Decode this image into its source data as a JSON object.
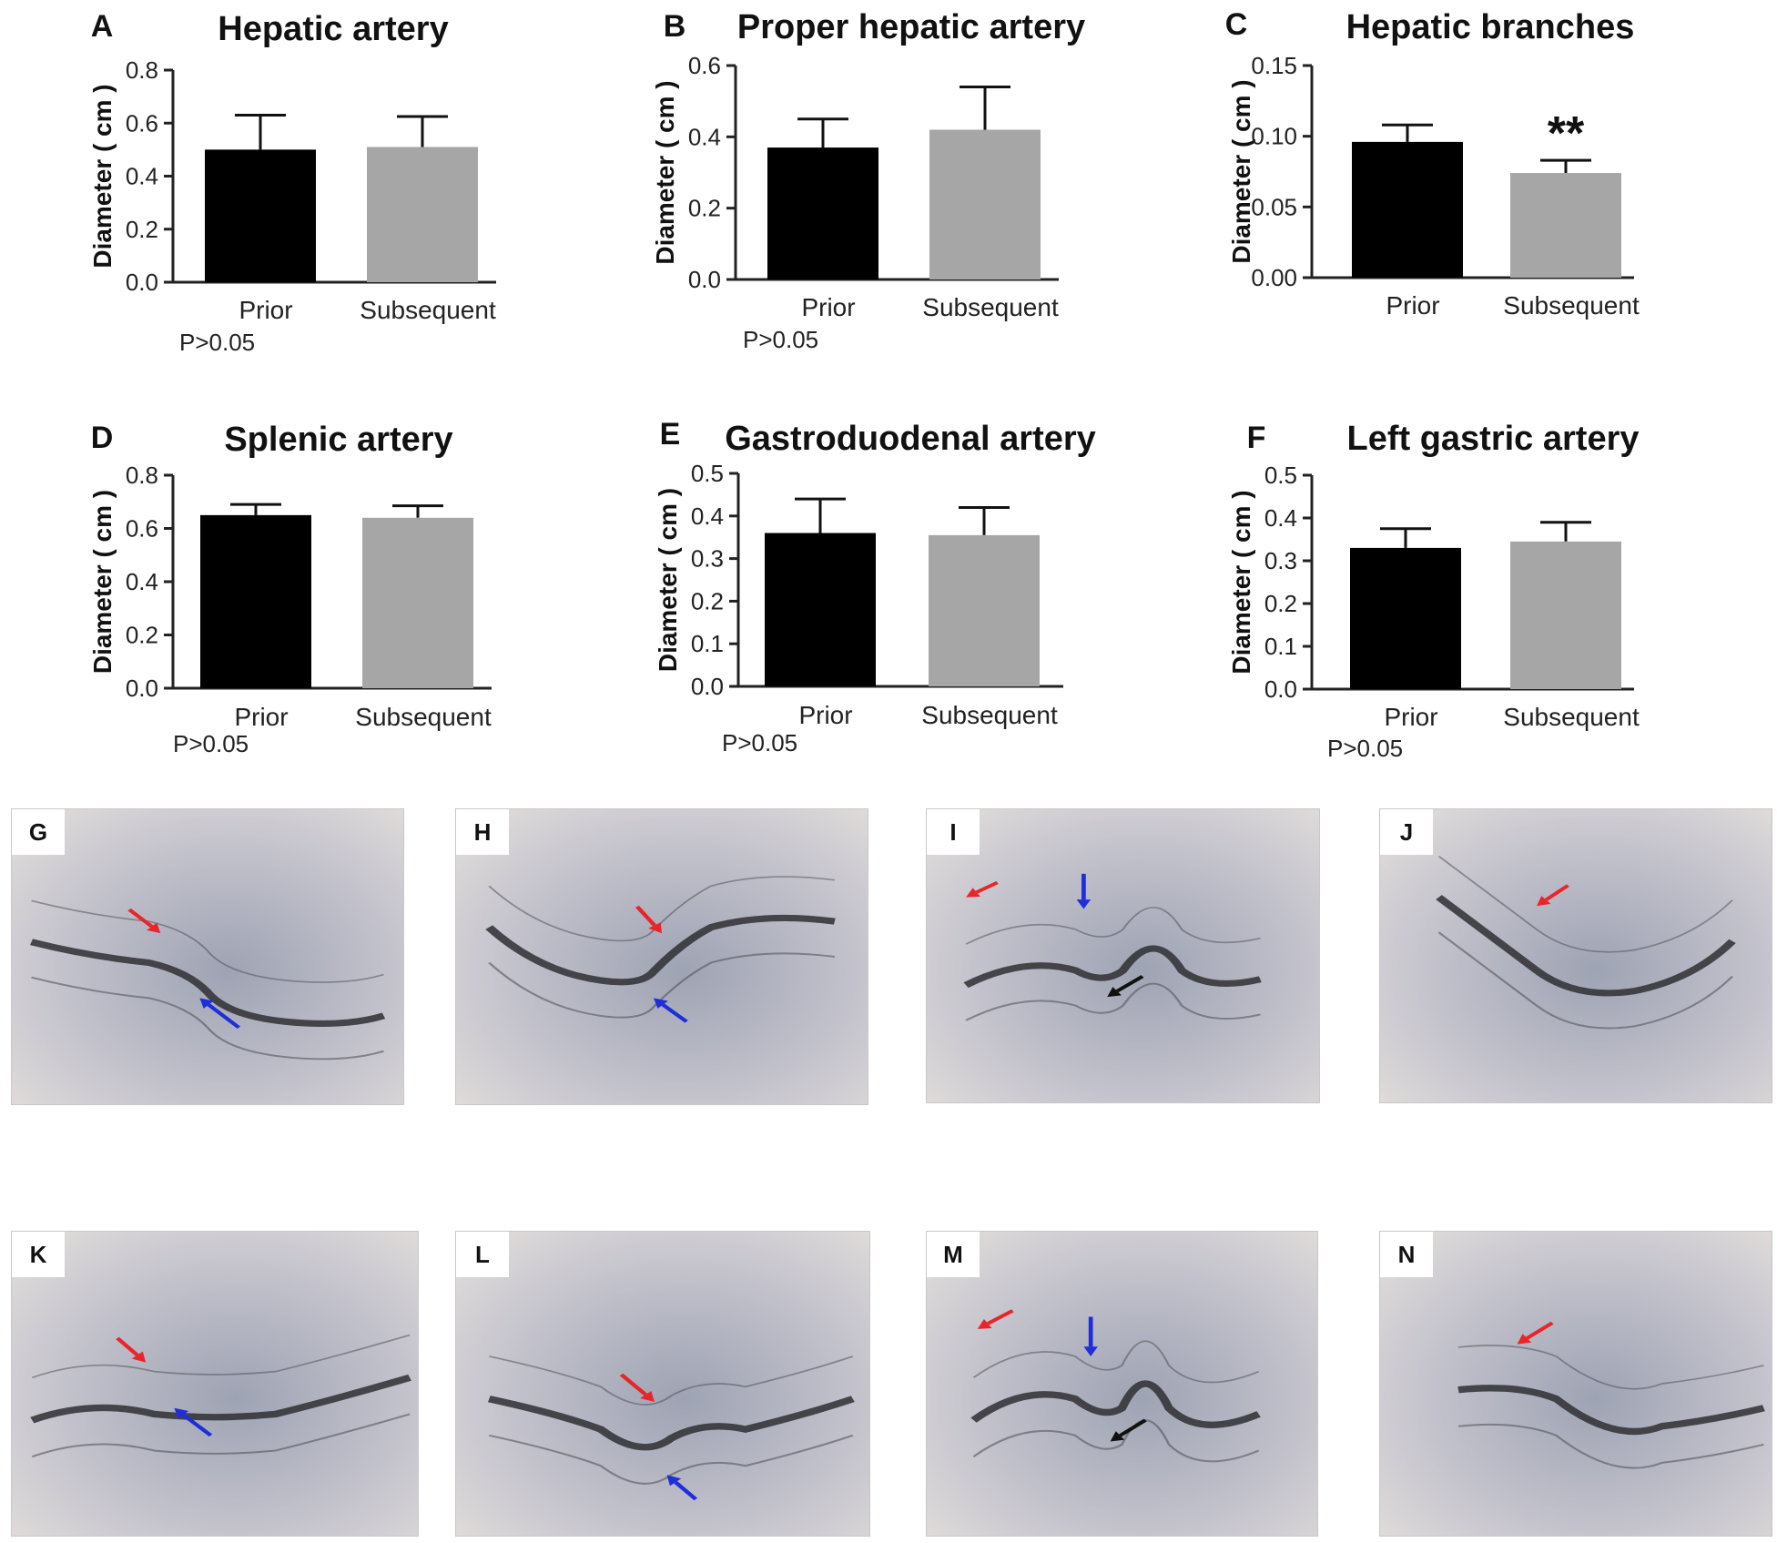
{
  "chart_data": [
    {
      "letter": "A",
      "type": "bar",
      "title": "Hepatic artery",
      "ylabel": "Diameter ( cm )",
      "categories": [
        "Prior",
        "Subsequent"
      ],
      "values": [
        0.5,
        0.51
      ],
      "errors": [
        0.13,
        0.115
      ],
      "colors": [
        "#000000",
        "#a6a6a6"
      ],
      "ylim": [
        0,
        0.8
      ],
      "ticks": [
        "0.0",
        "0.2",
        "0.4",
        "0.6",
        "0.8"
      ],
      "pvalue": "P>0.05",
      "significance": ""
    },
    {
      "letter": "B",
      "type": "bar",
      "title": "Proper hepatic artery",
      "ylabel": "Diameter ( cm )",
      "categories": [
        "Prior",
        "Subsequent"
      ],
      "values": [
        0.37,
        0.42
      ],
      "errors": [
        0.08,
        0.12
      ],
      "colors": [
        "#000000",
        "#a6a6a6"
      ],
      "ylim": [
        0,
        0.6
      ],
      "ticks": [
        "0.0",
        "0.2",
        "0.4",
        "0.6"
      ],
      "pvalue": "P>0.05",
      "significance": ""
    },
    {
      "letter": "C",
      "type": "bar",
      "title": "Hepatic branches",
      "ylabel": "Diameter ( cm )",
      "categories": [
        "Prior",
        "Subsequent"
      ],
      "values": [
        0.096,
        0.074
      ],
      "errors": [
        0.012,
        0.009
      ],
      "colors": [
        "#000000",
        "#a6a6a6"
      ],
      "ylim": [
        0,
        0.15
      ],
      "ticks": [
        "0.00",
        "0.05",
        "0.10",
        "0.15"
      ],
      "pvalue": "",
      "significance": "**"
    },
    {
      "letter": "D",
      "type": "bar",
      "title": "Splenic artery",
      "ylabel": "Diameter ( cm )",
      "categories": [
        "Prior",
        "Subsequent"
      ],
      "values": [
        0.65,
        0.64
      ],
      "errors": [
        0.04,
        0.045
      ],
      "colors": [
        "#000000",
        "#a6a6a6"
      ],
      "ylim": [
        0,
        0.8
      ],
      "ticks": [
        "0.0",
        "0.2",
        "0.4",
        "0.6",
        "0.8"
      ],
      "pvalue": "P>0.05",
      "significance": ""
    },
    {
      "letter": "E",
      "type": "bar",
      "title": "Gastroduodenal artery",
      "ylabel": "Diameter ( cm )",
      "categories": [
        "Prior",
        "Subsequent"
      ],
      "values": [
        0.36,
        0.355
      ],
      "errors": [
        0.08,
        0.065
      ],
      "colors": [
        "#000000",
        "#a6a6a6"
      ],
      "ylim": [
        0,
        0.5
      ],
      "ticks": [
        "0.0",
        "0.1",
        "0.2",
        "0.3",
        "0.4",
        "0.5"
      ],
      "pvalue": "P>0.05",
      "significance": ""
    },
    {
      "letter": "F",
      "type": "bar",
      "title": "Left gastric artery",
      "ylabel": "Diameter ( cm )",
      "categories": [
        "Prior",
        "Subsequent"
      ],
      "values": [
        0.33,
        0.345
      ],
      "errors": [
        0.045,
        0.045
      ],
      "colors": [
        "#000000",
        "#a6a6a6"
      ],
      "ylim": [
        0,
        0.5
      ],
      "ticks": [
        "0.0",
        "0.1",
        "0.2",
        "0.3",
        "0.4",
        "0.5"
      ],
      "pvalue": "P>0.05",
      "significance": ""
    }
  ],
  "angiograms": [
    {
      "letter": "G"
    },
    {
      "letter": "H"
    },
    {
      "letter": "I"
    },
    {
      "letter": "J"
    },
    {
      "letter": "K"
    },
    {
      "letter": "L"
    },
    {
      "letter": "M"
    },
    {
      "letter": "N"
    }
  ],
  "arrow_colors": {
    "red": "#e8262a",
    "blue": "#1f2ed8",
    "black": "#111111"
  }
}
